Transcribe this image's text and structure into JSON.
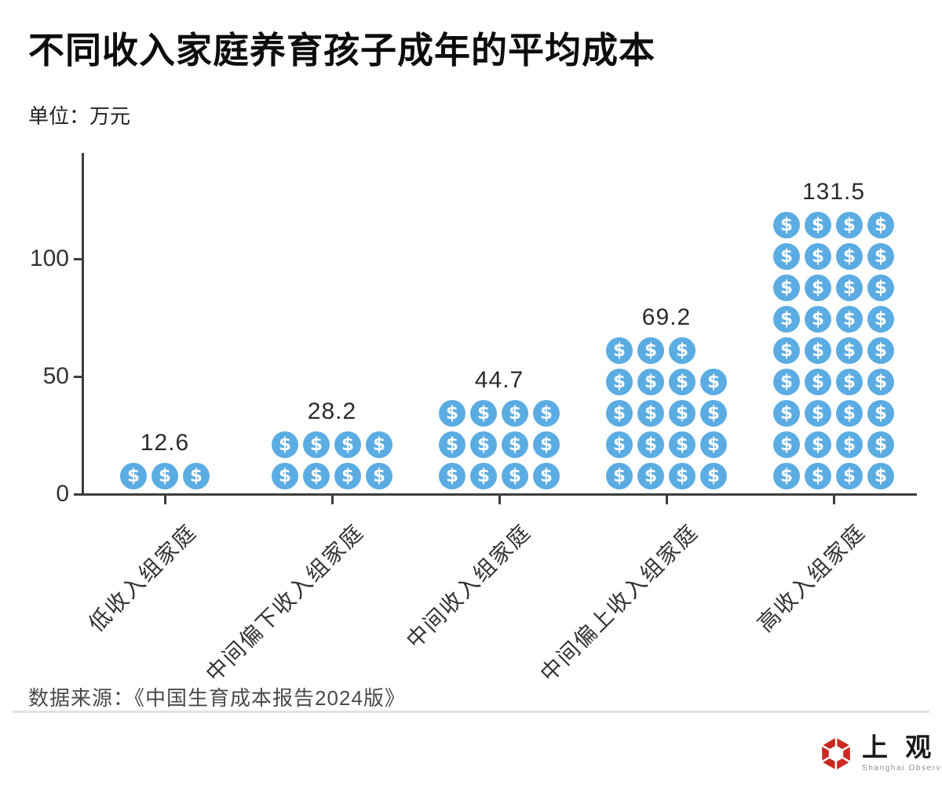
{
  "title": "不同收入家庭养育孩子成年的平均成本",
  "unit_label": "单位：万元",
  "source": "数据来源：《中国生育成本报告2024版》",
  "logo": {
    "cn": "上 观",
    "en": "Shanghai Observer"
  },
  "colors": {
    "icon_blue": "#5BACE3",
    "logo_red": "#CB2A21",
    "axis": "#3d3d3d"
  },
  "icon": {
    "name": "dollar-coin-icon",
    "glyph": "$"
  },
  "chart_data": {
    "type": "bar",
    "subtype": "pictogram",
    "title": "不同收入家庭养育孩子成年的平均成本",
    "ylabel": "万元",
    "categories": [
      "低收入组家庭",
      "中间偏下收入组家庭",
      "中间收入组家庭",
      "中间偏上收入组家庭",
      "高收入组家庭"
    ],
    "values": [
      12.6,
      28.2,
      44.7,
      69.2,
      131.5
    ],
    "value_labels": [
      "12.6",
      "28.2",
      "44.7",
      "69.2",
      "131.5"
    ],
    "icon_counts": [
      3,
      8,
      12,
      19,
      36
    ],
    "icons_per_row": 4,
    "yticks": [
      0,
      50,
      100
    ],
    "ylim": [
      0,
      145
    ],
    "grid": false,
    "legend": null
  }
}
